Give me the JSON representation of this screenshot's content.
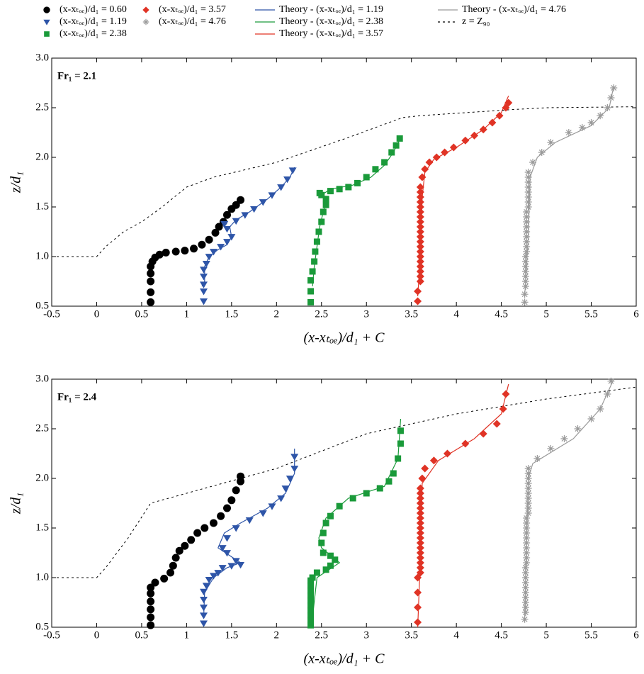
{
  "chart_data": [
    {
      "type": "scatter",
      "annotation": "Fr₁ = 2.1",
      "xlabel": "(x-xₜₒₑ)/d₁ + C",
      "ylabel": "z/d₁",
      "legend": "top",
      "xlim": [
        -0.5,
        6
      ],
      "ylim": [
        0.5,
        3
      ],
      "xticks": [
        -0.5,
        0,
        0.5,
        1,
        1.5,
        2,
        2.5,
        3,
        3.5,
        4,
        4.5,
        5,
        5.5,
        6
      ],
      "yticks": [
        0.5,
        {
          "value": 1,
          "label": "1.0"
        },
        1.5,
        {
          "value": 2,
          "label": "2.0"
        },
        2.5,
        {
          "value": 3,
          "label": "3.0"
        }
      ],
      "series": [
        {
          "name": "(x-xₜₒₑ)/d₁ = 0.60",
          "kind": "marker",
          "marker": "circle",
          "color": "#000000",
          "x": [
            0.6,
            0.6,
            0.6,
            0.6,
            0.6,
            0.62,
            0.65,
            0.7,
            0.77,
            0.88,
            0.98,
            1.08,
            1.17,
            1.25,
            1.32,
            1.36,
            1.41,
            1.45,
            1.5,
            1.55,
            1.6
          ],
          "values": [
            0.54,
            0.64,
            0.75,
            0.83,
            0.9,
            0.95,
            0.99,
            1.02,
            1.04,
            1.05,
            1.06,
            1.08,
            1.12,
            1.17,
            1.24,
            1.3,
            1.35,
            1.42,
            1.48,
            1.52,
            1.57
          ]
        },
        {
          "name": "(x-xₜₒₑ)/d₁ = 1.19",
          "kind": "marker",
          "marker": "triangle",
          "color": "#2e55a8",
          "x": [
            1.19,
            1.19,
            1.19,
            1.19,
            1.19,
            1.22,
            1.25,
            1.3,
            1.38,
            1.45,
            1.5,
            1.45,
            1.42,
            1.55,
            1.65,
            1.75,
            1.85,
            1.95,
            2.05,
            2.12,
            2.18
          ],
          "values": [
            0.55,
            0.65,
            0.72,
            0.8,
            0.87,
            0.93,
            1.0,
            1.05,
            1.1,
            1.15,
            1.2,
            1.28,
            1.33,
            1.36,
            1.42,
            1.48,
            1.55,
            1.62,
            1.7,
            1.78,
            1.87
          ]
        },
        {
          "name": "(x-xₜₒₑ)/d₁ = 2.38",
          "kind": "marker",
          "marker": "square",
          "color": "#1a9a3a",
          "x": [
            2.38,
            2.38,
            2.38,
            2.4,
            2.42,
            2.43,
            2.45,
            2.47,
            2.5,
            2.52,
            2.55,
            2.55,
            2.5,
            2.48,
            2.6,
            2.7,
            2.8,
            2.9,
            3.0,
            3.1,
            3.2,
            3.28,
            3.33,
            3.37
          ],
          "values": [
            0.54,
            0.65,
            0.76,
            0.85,
            0.95,
            1.05,
            1.15,
            1.25,
            1.35,
            1.45,
            1.52,
            1.58,
            1.62,
            1.64,
            1.66,
            1.68,
            1.7,
            1.74,
            1.8,
            1.88,
            1.95,
            2.05,
            2.12,
            2.19
          ]
        },
        {
          "name": "(x-xₜₒₑ)/d₁ = 3.57",
          "kind": "marker",
          "marker": "diamond",
          "color": "#e03325",
          "x": [
            3.57,
            3.57,
            3.6,
            3.6,
            3.6,
            3.6,
            3.6,
            3.6,
            3.6,
            3.6,
            3.6,
            3.6,
            3.6,
            3.6,
            3.6,
            3.6,
            3.6,
            3.6,
            3.6,
            3.6,
            3.6,
            3.6,
            3.62,
            3.65,
            3.7,
            3.78,
            3.87,
            3.97,
            4.1,
            4.2,
            4.3,
            4.4,
            4.48,
            4.55,
            4.58
          ],
          "values": [
            0.55,
            0.65,
            0.75,
            0.8,
            0.85,
            0.9,
            0.95,
            1.0,
            1.05,
            1.1,
            1.15,
            1.2,
            1.25,
            1.3,
            1.35,
            1.4,
            1.45,
            1.5,
            1.55,
            1.6,
            1.65,
            1.7,
            1.8,
            1.88,
            1.95,
            2.0,
            2.05,
            2.1,
            2.17,
            2.22,
            2.28,
            2.35,
            2.42,
            2.5,
            2.55
          ]
        },
        {
          "name": "(x-xₜₒₑ)/d₁ = 4.76",
          "kind": "marker",
          "marker": "star",
          "color": "#9a9a9a",
          "x": [
            4.76,
            4.76,
            4.77,
            4.77,
            4.77,
            4.77,
            4.77,
            4.77,
            4.77,
            4.78,
            4.78,
            4.78,
            4.78,
            4.78,
            4.78,
            4.78,
            4.78,
            4.78,
            4.8,
            4.8,
            4.8,
            4.8,
            4.8,
            4.8,
            4.8,
            4.8,
            4.85,
            4.95,
            5.05,
            5.25,
            5.4,
            5.5,
            5.6,
            5.68,
            5.72,
            5.75
          ],
          "values": [
            0.54,
            0.62,
            0.7,
            0.75,
            0.8,
            0.85,
            0.9,
            0.95,
            1.0,
            1.05,
            1.1,
            1.15,
            1.2,
            1.25,
            1.3,
            1.35,
            1.4,
            1.45,
            1.5,
            1.55,
            1.6,
            1.65,
            1.7,
            1.75,
            1.8,
            1.85,
            1.95,
            2.05,
            2.15,
            2.25,
            2.3,
            2.35,
            2.42,
            2.5,
            2.6,
            2.7
          ]
        },
        {
          "name": "Theory - (x-xₜₒₑ)/d₁ = 1.19",
          "kind": "line",
          "color": "#2e55a8",
          "x": [
            1.17,
            1.2,
            1.2,
            1.25,
            1.35,
            1.45,
            1.5,
            1.48,
            1.55,
            1.7,
            1.9,
            2.05,
            2.15,
            2.2
          ],
          "values": [
            0.7,
            0.75,
            0.9,
            1.0,
            1.07,
            1.12,
            1.2,
            1.3,
            1.37,
            1.45,
            1.58,
            1.7,
            1.8,
            1.9
          ]
        },
        {
          "name": "Theory - (x-xₜₒₑ)/d₁ = 2.38",
          "kind": "line",
          "color": "#1a9a3a",
          "x": [
            2.4,
            2.42,
            2.45,
            2.48,
            2.52,
            2.55,
            2.5,
            2.6,
            2.85,
            3.05,
            3.2,
            3.3,
            3.38
          ],
          "values": [
            0.7,
            0.9,
            1.1,
            1.3,
            1.45,
            1.55,
            1.62,
            1.68,
            1.72,
            1.8,
            1.92,
            2.05,
            2.2
          ]
        },
        {
          "name": "Theory - (x-xₜₒₑ)/d₁ = 3.57",
          "kind": "line",
          "color": "#e03325",
          "x": [
            3.57,
            3.6,
            3.62,
            3.65,
            3.75,
            4.0,
            4.3,
            4.5,
            4.58
          ],
          "values": [
            0.6,
            1.0,
            1.6,
            1.85,
            1.98,
            2.1,
            2.28,
            2.45,
            2.62
          ]
        },
        {
          "name": "Theory - (x-xₜₒₑ)/d₁ = 4.76",
          "kind": "line",
          "color": "#9a9a9a",
          "x": [
            4.76,
            4.8,
            4.82,
            4.9,
            5.1,
            5.5,
            5.7,
            5.75
          ],
          "values": [
            0.6,
            1.2,
            1.8,
            2.0,
            2.15,
            2.32,
            2.5,
            2.72
          ]
        },
        {
          "name": "z = Z₉₀",
          "kind": "line",
          "dashed": true,
          "color": "#000000",
          "x": [
            -0.5,
            0,
            0.1,
            0.3,
            0.5,
            0.7,
            1.0,
            1.3,
            2.0,
            2.8,
            3.4,
            3.6,
            4.6,
            5.0,
            6.0
          ],
          "values": [
            1.0,
            1.0,
            1.1,
            1.25,
            1.35,
            1.48,
            1.7,
            1.8,
            1.95,
            2.2,
            2.4,
            2.42,
            2.48,
            2.5,
            2.51
          ]
        }
      ]
    },
    {
      "type": "scatter",
      "annotation": "Fr₁ = 2.4",
      "xlabel": "(x-xₜₒₑ)/d₁ + C",
      "ylabel": "z/d₁",
      "xlim": [
        -0.5,
        6
      ],
      "ylim": [
        0.5,
        3
      ],
      "xticks": [
        -0.5,
        0,
        0.5,
        1,
        1.5,
        2,
        2.5,
        3,
        3.5,
        4,
        4.5,
        5,
        5.5,
        6
      ],
      "yticks": [
        0.5,
        {
          "value": 1,
          "label": "1.0"
        },
        1.5,
        {
          "value": 2,
          "label": "2.0"
        },
        2.5,
        {
          "value": 3,
          "label": "3.0"
        }
      ],
      "series": [
        {
          "kind": "marker",
          "marker": "circle",
          "color": "#000000",
          "x": [
            0.6,
            0.6,
            0.6,
            0.6,
            0.6,
            0.6,
            0.65,
            0.75,
            0.82,
            0.85,
            0.88,
            0.92,
            0.98,
            1.05,
            1.12,
            1.2,
            1.3,
            1.38,
            1.45,
            1.5,
            1.55,
            1.6,
            1.6
          ],
          "values": [
            0.52,
            0.6,
            0.68,
            0.76,
            0.84,
            0.9,
            0.95,
            0.99,
            1.05,
            1.12,
            1.2,
            1.27,
            1.32,
            1.38,
            1.45,
            1.5,
            1.55,
            1.62,
            1.7,
            1.78,
            1.88,
            1.97,
            2.02
          ]
        },
        {
          "kind": "marker",
          "marker": "triangle",
          "color": "#2e55a8",
          "x": [
            1.19,
            1.19,
            1.19,
            1.19,
            1.19,
            1.22,
            1.25,
            1.3,
            1.35,
            1.4,
            1.5,
            1.6,
            1.55,
            1.45,
            1.4,
            1.45,
            1.55,
            1.7,
            1.85,
            1.95,
            2.05,
            2.1,
            2.15,
            2.2,
            2.2
          ],
          "values": [
            0.54,
            0.62,
            0.7,
            0.78,
            0.86,
            0.92,
            0.98,
            1.02,
            1.05,
            1.1,
            1.12,
            1.13,
            1.17,
            1.25,
            1.3,
            1.4,
            1.5,
            1.58,
            1.65,
            1.72,
            1.8,
            1.9,
            2.0,
            2.1,
            2.22
          ]
        },
        {
          "kind": "marker",
          "marker": "square",
          "color": "#1a9a3a",
          "x": [
            2.38,
            2.38,
            2.38,
            2.38,
            2.38,
            2.38,
            2.38,
            2.38,
            2.38,
            2.38,
            2.4,
            2.45,
            2.55,
            2.6,
            2.65,
            2.6,
            2.52,
            2.5,
            2.52,
            2.55,
            2.6,
            2.7,
            2.85,
            3.0,
            3.15,
            3.25,
            3.3,
            3.35,
            3.38,
            3.38
          ],
          "values": [
            0.52,
            0.57,
            0.62,
            0.67,
            0.72,
            0.77,
            0.82,
            0.87,
            0.92,
            0.97,
            1.0,
            1.05,
            1.08,
            1.12,
            1.18,
            1.22,
            1.25,
            1.35,
            1.45,
            1.55,
            1.62,
            1.72,
            1.8,
            1.85,
            1.9,
            1.97,
            2.05,
            2.2,
            2.35,
            2.48
          ]
        },
        {
          "kind": "marker",
          "marker": "diamond",
          "color": "#e03325",
          "x": [
            3.57,
            3.57,
            3.57,
            3.57,
            3.6,
            3.6,
            3.6,
            3.6,
            3.6,
            3.6,
            3.6,
            3.6,
            3.6,
            3.6,
            3.6,
            3.6,
            3.6,
            3.6,
            3.6,
            3.6,
            3.6,
            3.6,
            3.62,
            3.65,
            3.75,
            3.9,
            4.1,
            4.3,
            4.45,
            4.52,
            4.55
          ],
          "values": [
            0.55,
            0.7,
            0.85,
            1.0,
            1.05,
            1.1,
            1.15,
            1.2,
            1.25,
            1.3,
            1.35,
            1.4,
            1.45,
            1.5,
            1.55,
            1.6,
            1.65,
            1.7,
            1.75,
            1.8,
            1.85,
            1.9,
            2.0,
            2.1,
            2.18,
            2.25,
            2.35,
            2.45,
            2.55,
            2.7,
            2.85
          ]
        },
        {
          "kind": "marker",
          "marker": "star",
          "color": "#9a9a9a",
          "x": [
            4.76,
            4.77,
            4.77,
            4.77,
            4.77,
            4.77,
            4.77,
            4.77,
            4.77,
            4.77,
            4.77,
            4.78,
            4.78,
            4.78,
            4.78,
            4.78,
            4.78,
            4.78,
            4.78,
            4.78,
            4.78,
            4.8,
            4.8,
            4.8,
            4.8,
            4.8,
            4.8,
            4.8,
            4.8,
            4.8,
            4.8,
            4.9,
            5.05,
            5.2,
            5.35,
            5.5,
            5.6,
            5.68,
            5.72
          ],
          "values": [
            0.58,
            0.65,
            0.7,
            0.75,
            0.8,
            0.85,
            0.9,
            0.95,
            1.0,
            1.05,
            1.1,
            1.15,
            1.2,
            1.25,
            1.3,
            1.35,
            1.4,
            1.45,
            1.5,
            1.55,
            1.6,
            1.65,
            1.7,
            1.75,
            1.8,
            1.85,
            1.9,
            1.95,
            2.0,
            2.05,
            2.1,
            2.2,
            2.3,
            2.4,
            2.5,
            2.6,
            2.7,
            2.85,
            2.98
          ]
        },
        {
          "kind": "line",
          "color": "#2e55a8",
          "x": [
            1.19,
            1.2,
            1.3,
            1.45,
            1.6,
            1.35,
            1.42,
            1.6,
            1.9,
            2.1,
            2.2,
            2.2
          ],
          "values": [
            0.6,
            0.85,
            1.0,
            1.1,
            1.15,
            1.3,
            1.45,
            1.55,
            1.7,
            1.85,
            2.05,
            2.3
          ]
        },
        {
          "kind": "line",
          "color": "#1a9a3a",
          "x": [
            2.4,
            2.45,
            2.7,
            2.5,
            2.47,
            2.55,
            2.8,
            3.2,
            3.35,
            3.38
          ],
          "values": [
            0.6,
            1.0,
            1.15,
            1.3,
            1.4,
            1.6,
            1.8,
            1.92,
            2.2,
            2.6
          ]
        },
        {
          "kind": "line",
          "color": "#e03325",
          "x": [
            3.57,
            3.6,
            3.62,
            3.8,
            4.2,
            4.5,
            4.58
          ],
          "values": [
            0.5,
            1.2,
            1.95,
            2.18,
            2.4,
            2.65,
            2.95
          ]
        },
        {
          "kind": "line",
          "color": "#9a9a9a",
          "x": [
            4.76,
            4.8,
            4.85,
            5.3,
            5.6,
            5.75
          ],
          "values": [
            0.6,
            2.0,
            2.15,
            2.4,
            2.7,
            3.0
          ]
        },
        {
          "kind": "line",
          "dashed": true,
          "color": "#000000",
          "x": [
            -0.5,
            0,
            0.1,
            0.35,
            0.6,
            1.0,
            2.0,
            3.0,
            4.0,
            5.0,
            6.0
          ],
          "values": [
            1.0,
            1.0,
            1.1,
            1.4,
            1.75,
            1.85,
            2.1,
            2.45,
            2.65,
            2.8,
            2.92
          ]
        }
      ]
    }
  ]
}
